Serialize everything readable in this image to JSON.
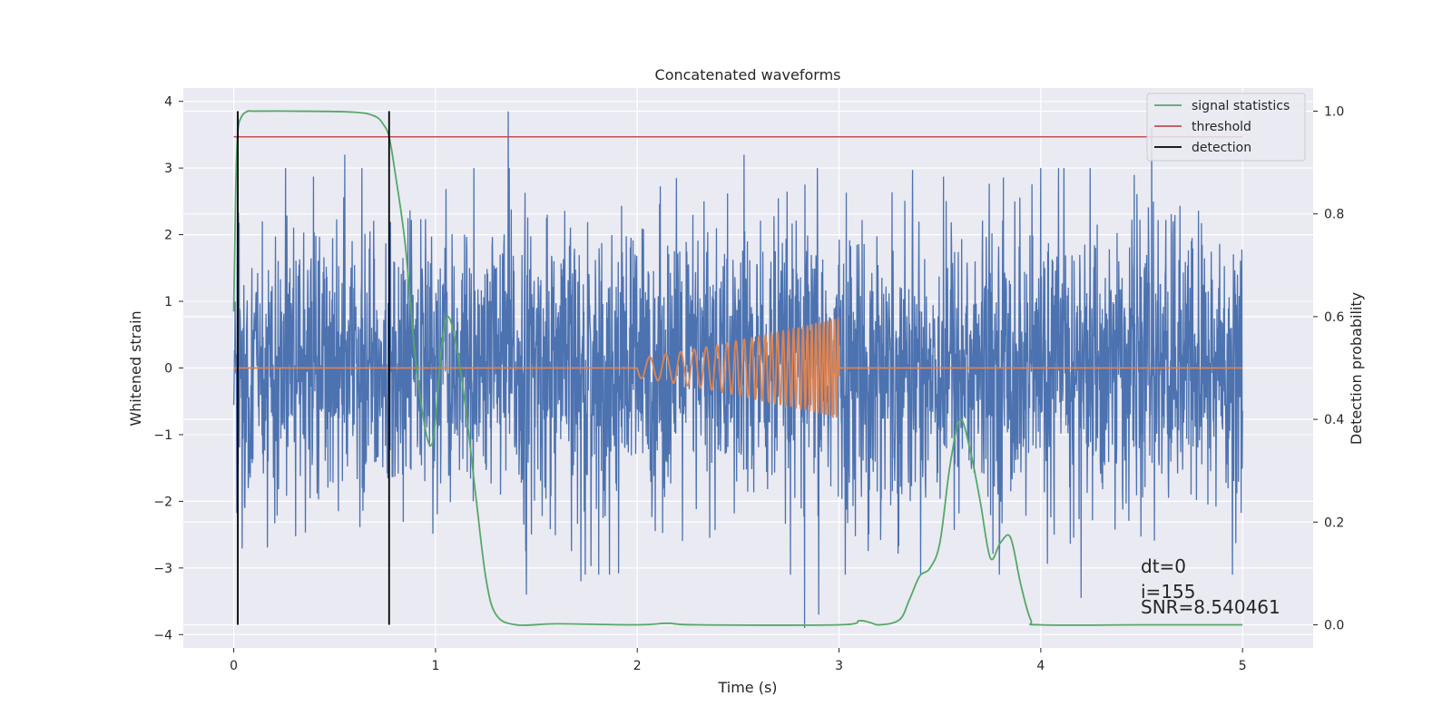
{
  "chart_data": {
    "type": "line",
    "title": "Concatenated waveforms",
    "xlabel": "Time (s)",
    "ylabel": "Whitened strain",
    "y2label": "Detection probability",
    "xlim": [
      -0.25,
      5.35
    ],
    "ylim": [
      -4.2,
      4.2
    ],
    "y2lim": [
      -0.045,
      1.045
    ],
    "xticks": [
      0,
      1,
      2,
      3,
      4,
      5
    ],
    "xtick_labels": [
      "0",
      "1",
      "2",
      "3",
      "4",
      "5"
    ],
    "yticks": [
      4,
      3,
      2,
      1,
      0,
      -1,
      -2,
      -3,
      -4
    ],
    "ytick_labels": [
      "4",
      "3",
      "2",
      "1",
      "0",
      "−1",
      "−2",
      "−3",
      "−4"
    ],
    "y2ticks": [
      1.0,
      0.8,
      0.6,
      0.4,
      0.2,
      0.0
    ],
    "y2tick_labels": [
      "1.0",
      "0.8",
      "0.6",
      "0.4",
      "0.2",
      "0.0"
    ],
    "grid": true,
    "legend_position": "top-right",
    "colors": {
      "background": "#eaeaf2",
      "grid": "#ffffff",
      "strain": "#4c72b0",
      "template": "#dd8452",
      "signal_statistics": "#55a868",
      "threshold": "#c44e52",
      "detection": "#000000"
    },
    "series": [
      {
        "name": "whitened strain (noise)",
        "axis": "left",
        "x_range": [
          0,
          5
        ],
        "amplitude_typical": 2.4,
        "notable_spikes": [
          {
            "x": 0.55,
            "y": 3.2
          },
          {
            "x": 1.36,
            "y": 3.85
          },
          {
            "x": 2.53,
            "y": 3.2
          },
          {
            "x": 4.55,
            "y": 3.6
          },
          {
            "x": 1.45,
            "y": -3.4
          },
          {
            "x": 1.72,
            "y": -3.2
          },
          {
            "x": 2.83,
            "y": -3.9
          },
          {
            "x": 2.9,
            "y": -3.7
          },
          {
            "x": 4.2,
            "y": -3.45
          }
        ]
      },
      {
        "name": "injected waveform",
        "axis": "left",
        "chirp_start": 2.0,
        "chirp_end": 3.0,
        "amp_start": 0.15,
        "amp_end": 0.75,
        "freq_start": 12,
        "freq_end": 60
      },
      {
        "name": "signal statistics",
        "axis": "right",
        "x": [
          0.0,
          0.01,
          0.02,
          0.04,
          0.07,
          0.1,
          0.3,
          0.6,
          0.7,
          0.74,
          0.77,
          0.8,
          0.85,
          0.9,
          0.95,
          0.98,
          1.0,
          1.03,
          1.06,
          1.1,
          1.15,
          1.2,
          1.25,
          1.3,
          1.4,
          1.6,
          2.0,
          2.15,
          2.3,
          3.0,
          3.1,
          3.15,
          3.2,
          3.3,
          3.35,
          3.4,
          3.45,
          3.5,
          3.55,
          3.6,
          3.65,
          3.7,
          3.75,
          3.8,
          3.85,
          3.9,
          3.95,
          4.0,
          4.5,
          5.0
        ],
        "y": [
          0.61,
          0.85,
          0.96,
          0.99,
          1.0,
          1.0,
          1.0,
          0.998,
          0.99,
          0.975,
          0.95,
          0.88,
          0.74,
          0.52,
          0.38,
          0.35,
          0.4,
          0.54,
          0.6,
          0.55,
          0.42,
          0.25,
          0.09,
          0.02,
          0.0,
          0.002,
          0.0,
          0.003,
          0.0,
          0.0,
          0.008,
          0.005,
          0.0,
          0.01,
          0.05,
          0.095,
          0.11,
          0.16,
          0.31,
          0.4,
          0.34,
          0.24,
          0.13,
          0.16,
          0.17,
          0.08,
          0.01,
          0.0,
          0.0,
          0.0
        ]
      },
      {
        "name": "threshold",
        "axis": "right",
        "x": [
          0.0,
          5.0
        ],
        "y": [
          0.95,
          0.95
        ]
      },
      {
        "name": "detection",
        "axis": "right",
        "type": "vlines",
        "x": [
          0.02,
          0.77
        ],
        "y_range": [
          0.0,
          1.0
        ]
      }
    ],
    "legend": [
      {
        "label": "signal statistics",
        "color": "#55a868"
      },
      {
        "label": "threshold",
        "color": "#c44e52"
      },
      {
        "label": "detection",
        "color": "#000000"
      }
    ],
    "annotations": [
      "dt=0",
      "i=155",
      "SNR=8.540461"
    ]
  }
}
